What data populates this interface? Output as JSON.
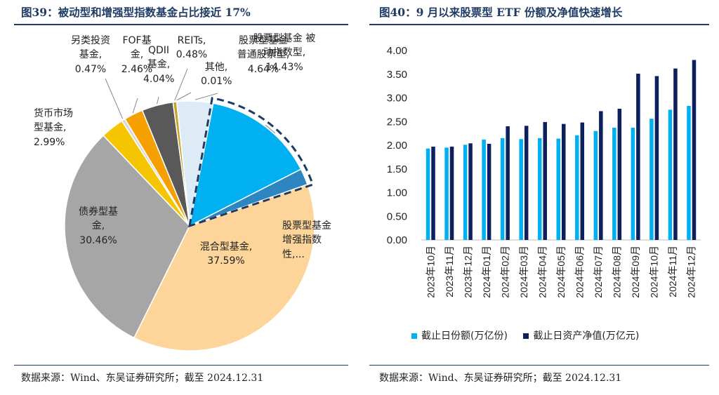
{
  "left": {
    "title": "图39：被动型和增强型指数基金占比接近 17%",
    "source": "数据来源：Wind、东吴证券研究所；截至 2024.12.31"
  },
  "right": {
    "title": "图40：9 月以来股票型 ETF 份额及净值快速增长",
    "source": "数据来源：Wind、东吴证券研究所；截至 2024.12.31"
  },
  "chart_data": [
    {
      "type": "pie",
      "slices": [
        {
          "label": "股票型基金 被动指数型,",
          "value": 14.43,
          "value_label": "14.43%",
          "color": "#00b0f0"
        },
        {
          "label": "股票型基金 增强指数性,...",
          "value": 2.1,
          "value_label": "",
          "color": "#2e86c1"
        },
        {
          "label": "混合型基金,",
          "value": 37.59,
          "value_label": "37.59%",
          "color": "#fdd59a"
        },
        {
          "label": "债券型基金,",
          "value": 30.46,
          "value_label": "30.46%",
          "color": "#a6a6a6"
        },
        {
          "label": "货币市场型基金,",
          "value": 2.99,
          "value_label": "2.99%",
          "color": "#f4c500"
        },
        {
          "label": "另类投资基金,",
          "value": 0.47,
          "value_label": "0.47%",
          "color": "#d9d9d9"
        },
        {
          "label": "FOF基金,",
          "value": 2.46,
          "value_label": "2.46%",
          "color": "#f5a000"
        },
        {
          "label": "QDII基金,",
          "value": 4.04,
          "value_label": "4.04%",
          "color": "#595959"
        },
        {
          "label": "REITs,",
          "value": 0.48,
          "value_label": "0.48%",
          "color": "#c9a227"
        },
        {
          "label": "其他,",
          "value": 0.01,
          "value_label": "0.01%",
          "color": "#262626"
        },
        {
          "label": "股票型基金 普通股票型,",
          "value": 4.64,
          "value_label": "4.64%",
          "color": "#ddebf7"
        }
      ],
      "highlight": "股票型基金 被动指数型 + 增强指数型（虚线框）"
    },
    {
      "type": "bar",
      "categories": [
        "2023年10月",
        "2023年11月",
        "2023年12月",
        "2024年01月",
        "2024年02月",
        "2024年03月",
        "2024年04月",
        "2024年05月",
        "2024年06月",
        "2024年07月",
        "2024年08月",
        "2024年09月",
        "2024年10月",
        "2024年11月",
        "2024年12月"
      ],
      "series": [
        {
          "name": "截止日份额(万亿份)",
          "color": "#00b0f0",
          "values": [
            1.93,
            1.95,
            2.01,
            2.12,
            2.15,
            2.13,
            2.15,
            2.14,
            2.21,
            2.3,
            2.37,
            2.37,
            2.56,
            2.75,
            2.83
          ]
        },
        {
          "name": "截止日资产净值(万亿元)",
          "color": "#0d1f5c",
          "values": [
            1.97,
            1.97,
            2.04,
            2.03,
            2.4,
            2.41,
            2.49,
            2.45,
            2.48,
            2.72,
            2.77,
            3.51,
            3.46,
            3.62,
            3.8
          ]
        }
      ],
      "ylim": [
        0,
        4
      ],
      "yticks": [
        "0.00",
        "0.50",
        "1.00",
        "1.50",
        "2.00",
        "2.50",
        "3.00",
        "3.50",
        "4.00"
      ],
      "legend_position": "bottom"
    }
  ]
}
